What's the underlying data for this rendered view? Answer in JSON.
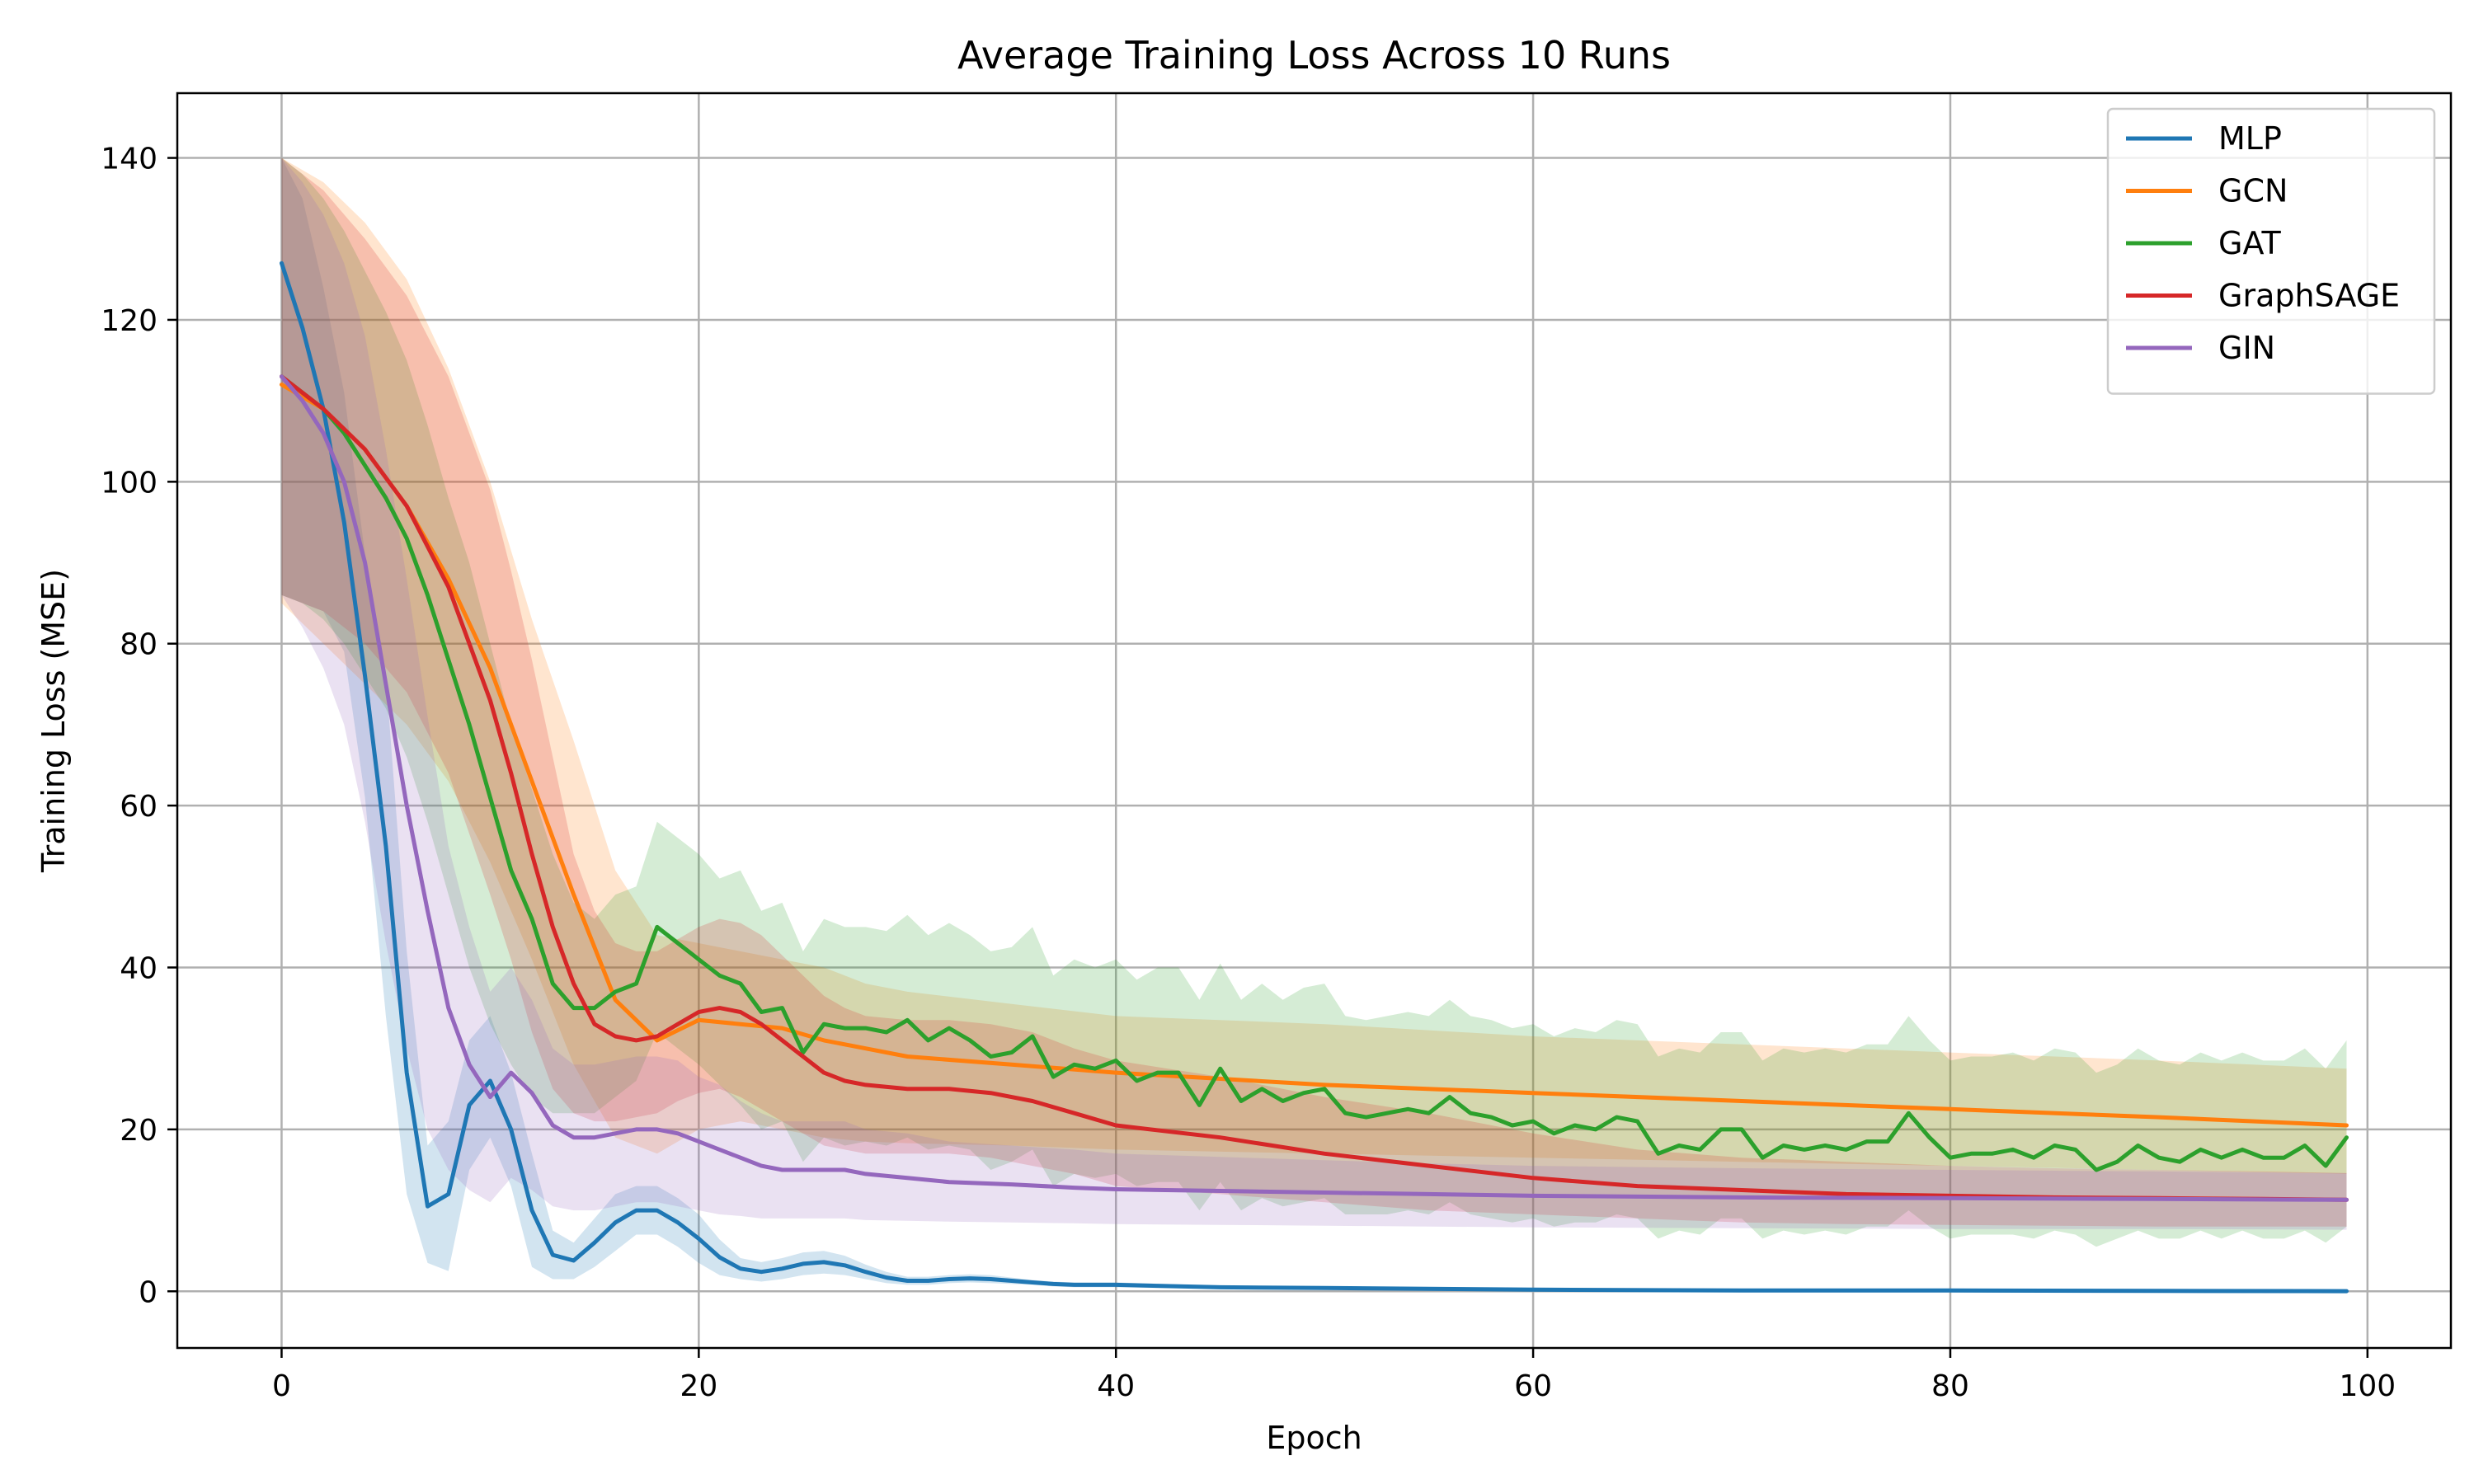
{
  "chart_data": {
    "type": "line",
    "title": "Average Training Loss Across 10 Runs",
    "xlabel": "Epoch",
    "ylabel": "Training Loss (MSE)",
    "xlim": [
      -5,
      104
    ],
    "ylim": [
      -7,
      148
    ],
    "xticks": [
      0,
      20,
      40,
      60,
      80,
      100
    ],
    "yticks": [
      0,
      20,
      40,
      60,
      80,
      100,
      120,
      140
    ],
    "grid": true,
    "legend_position": "top-right",
    "shaded_bands": "mean ± standard deviation across runs",
    "series": [
      {
        "name": "MLP",
        "color": "#1f77b4",
        "x": [
          0,
          1,
          2,
          3,
          4,
          5,
          6,
          7,
          8,
          9,
          10,
          11,
          12,
          13,
          14,
          15,
          16,
          17,
          18,
          19,
          20,
          21,
          22,
          23,
          24,
          25,
          26,
          27,
          28,
          29,
          30,
          31,
          32,
          33,
          34,
          35,
          36,
          37,
          38,
          39,
          40,
          45,
          50,
          60,
          70,
          80,
          90,
          99
        ],
        "mean": [
          127,
          119,
          109,
          95,
          76,
          55,
          27,
          10.5,
          12,
          23,
          26,
          20,
          10,
          4.5,
          3.8,
          6,
          8.5,
          10,
          10,
          8.5,
          6.5,
          4.2,
          2.8,
          2.4,
          2.8,
          3.4,
          3.6,
          3.2,
          2.4,
          1.7,
          1.3,
          1.3,
          1.5,
          1.6,
          1.5,
          1.3,
          1.1,
          0.9,
          0.8,
          0.8,
          0.8,
          0.5,
          0.4,
          0.2,
          0.1,
          0.1,
          0.05,
          0.02
        ],
        "lower": [
          86,
          85,
          84,
          79,
          61,
          34,
          12,
          3.5,
          2.5,
          15,
          19,
          13,
          3,
          1.5,
          1.5,
          3,
          5,
          7,
          7,
          5.5,
          3.5,
          2,
          1.5,
          1.2,
          1.5,
          2,
          2.2,
          2,
          1.5,
          1,
          0.8,
          0.8,
          1,
          1.1,
          1,
          0.9,
          0.8,
          0.6,
          0.5,
          0.5,
          0.5,
          0.3,
          0.2,
          0.1,
          0.05,
          0.05,
          0.02,
          0.01
        ],
        "upper": [
          140,
          135,
          124,
          111,
          91,
          76,
          42,
          18,
          21,
          31,
          34,
          27,
          17,
          7.5,
          6,
          9,
          12,
          13,
          13,
          11.5,
          9.5,
          6.4,
          4.1,
          3.6,
          4.1,
          4.8,
          5,
          4.4,
          3.3,
          2.4,
          1.8,
          1.8,
          2,
          2.1,
          2,
          1.7,
          1.4,
          1.2,
          1.1,
          1.1,
          1.1,
          0.7,
          0.6,
          0.3,
          0.15,
          0.15,
          0.08,
          0.03
        ]
      },
      {
        "name": "GCN",
        "color": "#ff7f0e",
        "x": [
          0,
          2,
          4,
          6,
          8,
          10,
          12,
          14,
          16,
          18,
          20,
          22,
          24,
          26,
          28,
          30,
          35,
          40,
          50,
          60,
          70,
          80,
          90,
          99
        ],
        "mean": [
          112,
          109,
          104,
          97,
          88,
          77,
          63,
          49,
          36,
          31,
          33.5,
          33,
          32.5,
          31,
          30,
          29,
          28,
          27,
          25.5,
          24.5,
          23.5,
          22.5,
          21.5,
          20.5
        ],
        "lower": [
          85,
          80,
          75,
          70,
          63,
          53,
          41,
          28,
          19,
          17,
          20,
          21,
          20,
          19,
          18.5,
          18.3,
          18,
          17.5,
          17,
          16.5,
          16,
          15.5,
          15,
          14.5
        ],
        "upper": [
          140,
          137,
          132,
          125,
          114,
          100,
          83,
          68,
          52,
          44,
          43,
          42,
          41,
          40,
          38,
          37,
          35.5,
          34,
          33,
          31.5,
          30.5,
          29.5,
          28.5,
          27.5
        ]
      },
      {
        "name": "GAT",
        "color": "#2ca02c",
        "x": [
          0,
          1,
          2,
          3,
          4,
          5,
          6,
          7,
          8,
          9,
          10,
          11,
          12,
          13,
          14,
          15,
          16,
          17,
          18,
          19,
          20,
          21,
          22,
          23,
          24,
          25,
          26,
          27,
          28,
          29,
          30,
          31,
          32,
          33,
          34,
          35,
          36,
          37,
          38,
          39,
          40,
          41,
          42,
          43,
          44,
          45,
          46,
          47,
          48,
          49,
          50,
          51,
          52,
          53,
          54,
          55,
          56,
          57,
          58,
          59,
          60,
          61,
          62,
          63,
          64,
          65,
          66,
          67,
          68,
          69,
          70,
          71,
          72,
          73,
          74,
          75,
          76,
          77,
          78,
          79,
          80,
          81,
          82,
          83,
          84,
          85,
          86,
          87,
          88,
          89,
          90,
          91,
          92,
          93,
          94,
          95,
          96,
          97,
          98,
          99
        ],
        "mean": [
          113,
          111,
          109,
          106,
          102,
          98,
          93,
          86,
          78,
          70,
          61,
          52,
          46,
          38,
          35,
          35,
          37,
          38,
          45,
          43,
          41,
          39,
          38,
          34.5,
          35,
          29.5,
          33,
          32.5,
          32.5,
          32,
          33.5,
          31,
          32.5,
          31,
          29,
          29.5,
          31.5,
          26.5,
          28,
          27.5,
          28.5,
          26,
          27,
          27,
          23,
          27.5,
          23.5,
          25,
          23.5,
          24.5,
          25,
          22,
          21.5,
          22,
          22.5,
          22,
          24,
          22,
          21.5,
          20.5,
          21,
          19.5,
          20.5,
          20,
          21.5,
          21,
          17,
          18,
          17.5,
          20,
          20,
          16.5,
          18,
          17.5,
          18,
          17.5,
          18.5,
          18.5,
          22,
          19,
          16.5,
          17,
          17,
          17.5,
          16.5,
          18,
          17.5,
          15,
          16,
          18,
          16.5,
          16,
          17.5,
          16.5,
          17.5,
          16.5,
          16.5,
          18,
          15.5,
          19
        ],
        "lower": [
          86,
          85,
          83,
          80,
          76,
          72,
          66,
          58,
          49,
          40,
          33,
          28,
          24,
          22,
          22,
          22,
          24,
          26,
          32,
          30,
          28,
          25.5,
          23,
          20,
          21,
          16,
          19,
          18,
          18.5,
          18,
          19,
          17.5,
          18,
          17.5,
          15,
          16,
          17.5,
          13,
          14.5,
          14,
          14.5,
          13,
          13.5,
          13.5,
          10,
          13.5,
          10,
          11.5,
          10.5,
          11,
          11.5,
          9.5,
          9.5,
          9.5,
          10,
          9.5,
          11,
          9.5,
          9,
          8.5,
          9,
          8,
          8.5,
          8.5,
          9.5,
          9,
          6.5,
          7.5,
          7,
          9,
          9,
          6.5,
          7.5,
          7,
          7.5,
          7,
          8,
          8,
          10,
          8,
          6.5,
          7,
          7,
          7,
          6.5,
          7.5,
          7,
          5.5,
          6.5,
          7.5,
          6.5,
          6.5,
          7.5,
          6.5,
          7.5,
          6.5,
          6.5,
          7.5,
          6,
          8
        ],
        "upper": [
          140,
          138,
          135,
          131,
          126,
          121,
          115,
          107,
          98,
          90,
          80,
          70,
          62,
          54,
          48,
          46,
          49,
          50,
          58,
          56,
          54,
          51,
          52,
          47,
          48,
          42,
          46,
          45,
          45,
          44.5,
          46.5,
          44,
          45.5,
          44,
          42,
          42.5,
          45,
          39,
          41,
          40,
          41,
          38.5,
          40,
          40,
          36,
          40.5,
          36,
          38,
          36,
          37.5,
          38,
          34,
          33.5,
          34,
          34.5,
          34,
          36,
          34,
          33.5,
          32.5,
          33,
          31.5,
          32.5,
          32,
          33.5,
          33,
          29,
          30,
          29.5,
          32,
          32,
          28.5,
          30,
          29.5,
          30,
          29.5,
          30.5,
          30.5,
          34,
          31,
          28.5,
          29,
          29,
          29.5,
          28.5,
          30,
          29.5,
          27,
          28,
          30,
          28.5,
          28,
          29.5,
          28.5,
          29.5,
          28.5,
          28.5,
          30,
          27.5,
          31
        ]
      },
      {
        "name": "GraphSAGE",
        "color": "#d62728",
        "x": [
          0,
          2,
          4,
          6,
          8,
          10,
          11,
          12,
          13,
          14,
          15,
          16,
          17,
          18,
          19,
          20,
          21,
          22,
          23,
          24,
          25,
          26,
          27,
          28,
          30,
          32,
          34,
          36,
          38,
          40,
          45,
          50,
          55,
          60,
          65,
          70,
          75,
          80,
          85,
          90,
          95,
          99
        ],
        "mean": [
          113,
          109,
          104,
          97,
          87,
          73,
          64,
          54,
          45,
          38,
          33,
          31.5,
          31,
          31.5,
          33,
          34.5,
          35,
          34.5,
          33,
          31,
          29,
          27,
          26,
          25.5,
          25,
          25,
          24.5,
          23.5,
          22,
          20.5,
          19,
          17,
          15.5,
          14,
          13,
          12.5,
          12,
          11.8,
          11.6,
          11.5,
          11.4,
          11.3
        ],
        "lower": [
          86,
          84,
          80,
          74,
          64,
          49,
          41,
          32,
          25,
          22,
          21,
          21,
          21.5,
          22,
          23.5,
          24.5,
          25,
          24,
          22.5,
          21,
          19.5,
          18,
          17.5,
          17,
          17,
          17,
          16.5,
          15.5,
          14.5,
          13,
          12,
          11,
          10,
          9.5,
          9,
          8.5,
          8.3,
          8.2,
          8.1,
          8,
          8,
          8
        ],
        "upper": [
          140,
          136,
          130,
          123,
          113,
          99,
          89,
          78,
          66,
          54,
          47,
          43,
          42,
          42,
          43.5,
          45,
          46,
          45.5,
          44,
          41.5,
          39,
          36.5,
          35,
          34,
          33.5,
          33.5,
          33,
          32,
          30,
          28.5,
          26.5,
          24,
          22,
          19.5,
          17.5,
          16.5,
          16,
          15.5,
          15.2,
          15,
          14.8,
          14.6
        ]
      },
      {
        "name": "GIN",
        "color": "#9467bd",
        "x": [
          0,
          1,
          2,
          3,
          4,
          5,
          6,
          7,
          8,
          9,
          10,
          11,
          12,
          13,
          14,
          15,
          16,
          17,
          18,
          19,
          20,
          21,
          22,
          23,
          24,
          25,
          26,
          27,
          28,
          30,
          32,
          35,
          38,
          40,
          45,
          50,
          55,
          60,
          70,
          80,
          90,
          99
        ],
        "mean": [
          113,
          110,
          106,
          100,
          90,
          75,
          60,
          47,
          35,
          28,
          24,
          27,
          24.5,
          20.5,
          19,
          19,
          19.5,
          20,
          20,
          19.5,
          18.5,
          17.5,
          16.5,
          15.5,
          15,
          15,
          15,
          15,
          14.5,
          14,
          13.5,
          13.2,
          12.8,
          12.6,
          12.4,
          12.2,
          12,
          11.8,
          11.6,
          11.5,
          11.4,
          11.3
        ],
        "lower": [
          86,
          82,
          77,
          70,
          58,
          43,
          30,
          20,
          15,
          12.5,
          11,
          14,
          12.5,
          10.5,
          10,
          10,
          10.5,
          11,
          11,
          10.5,
          10,
          9.5,
          9.3,
          9,
          9,
          9,
          9,
          9,
          8.8,
          8.7,
          8.6,
          8.5,
          8.4,
          8.3,
          8.2,
          8.1,
          8,
          7.9,
          7.8,
          7.7,
          7.7,
          7.6
        ],
        "upper": [
          140,
          137,
          133,
          127,
          118,
          104,
          88,
          71,
          55,
          45,
          37,
          40,
          36,
          30,
          28,
          28,
          28.5,
          29,
          29,
          28.5,
          26.5,
          25.5,
          23.5,
          22,
          21,
          21,
          21,
          21,
          20,
          19.5,
          18.5,
          18,
          17.5,
          17,
          16.6,
          16.2,
          15.8,
          15.5,
          15.2,
          15,
          14.8,
          14.6
        ]
      }
    ]
  }
}
